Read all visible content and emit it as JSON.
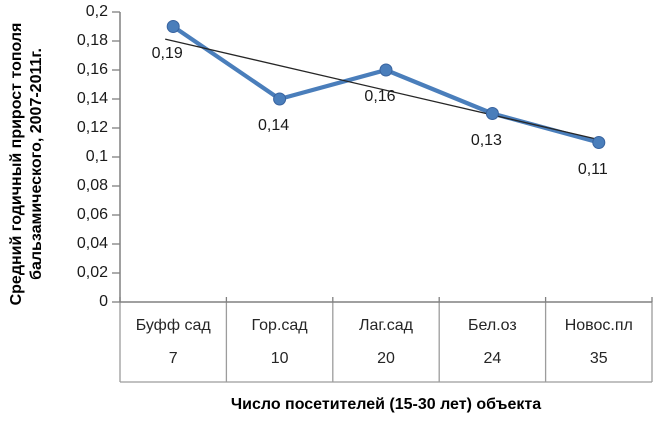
{
  "chart_data": {
    "type": "line",
    "categories": [
      "Буфф сад",
      "Гор.сад",
      "Лаг.сад",
      "Бел.оз",
      "Новос.пл"
    ],
    "category_sublabels": [
      "7",
      "10",
      "20",
      "24",
      "35"
    ],
    "values": [
      0.19,
      0.14,
      0.16,
      0.13,
      0.11
    ],
    "data_labels": [
      "0,19",
      "0,14",
      "0,16",
      "0,13",
      "0,11"
    ],
    "xlabel": "Число посетителей (15-30 лет) объекта",
    "ylabel": "Средний годичный прирост тополя бальзамического, 2007-2011г.",
    "ylim": [
      0,
      0.2
    ],
    "y_tick_step": 0.02,
    "y_tick_labels": [
      "0",
      "0,02",
      "0,04",
      "0,06",
      "0,08",
      "0,1",
      "0,12",
      "0,14",
      "0,16",
      "0,18",
      "0,2"
    ],
    "trendline": {
      "type": "linear"
    },
    "legend": "none",
    "grid": false,
    "colors": {
      "series": "#4a7ebb",
      "marker_edge": "#38639f",
      "trendline": "#262626",
      "axis": "#808080",
      "table_border": "#9c9c9c"
    }
  }
}
